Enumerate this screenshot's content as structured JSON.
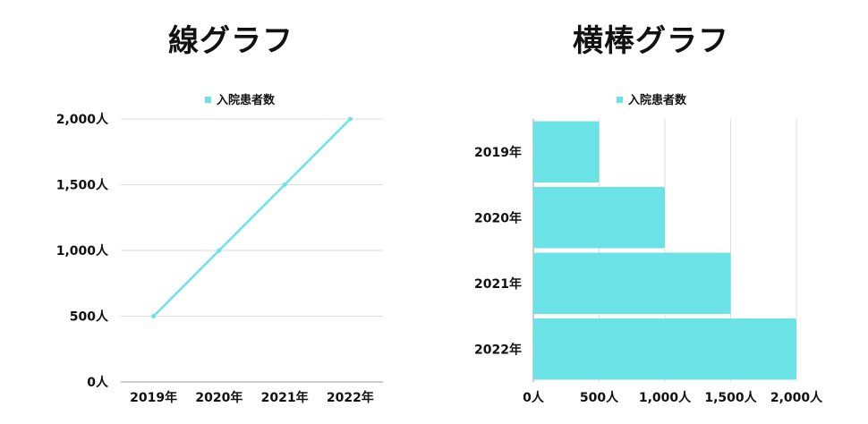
{
  "chart_data": [
    {
      "type": "line",
      "title": "線グラフ",
      "categories": [
        "2019年",
        "2020年",
        "2021年",
        "2022年"
      ],
      "series": [
        {
          "name": "入院患者数",
          "values": [
            500,
            1000,
            1500,
            2000
          ],
          "color": "#6be3e6"
        }
      ],
      "y_ticks": [
        "0人",
        "500人",
        "1,000人",
        "1,500人",
        "2,000人"
      ],
      "ylim": [
        0,
        2000
      ],
      "grid": true,
      "legend": "top-center"
    },
    {
      "type": "bar",
      "orientation": "horizontal",
      "title": "横棒グラフ",
      "categories": [
        "2019年",
        "2020年",
        "2021年",
        "2022年"
      ],
      "series": [
        {
          "name": "入院患者数",
          "values": [
            500,
            1000,
            1500,
            2000
          ],
          "color": "#6be3e6"
        }
      ],
      "x_ticks": [
        "0人",
        "500人",
        "1,000人",
        "1,500人",
        "2,000人"
      ],
      "xlim": [
        0,
        2000
      ],
      "grid": true,
      "legend": "top-center"
    }
  ]
}
